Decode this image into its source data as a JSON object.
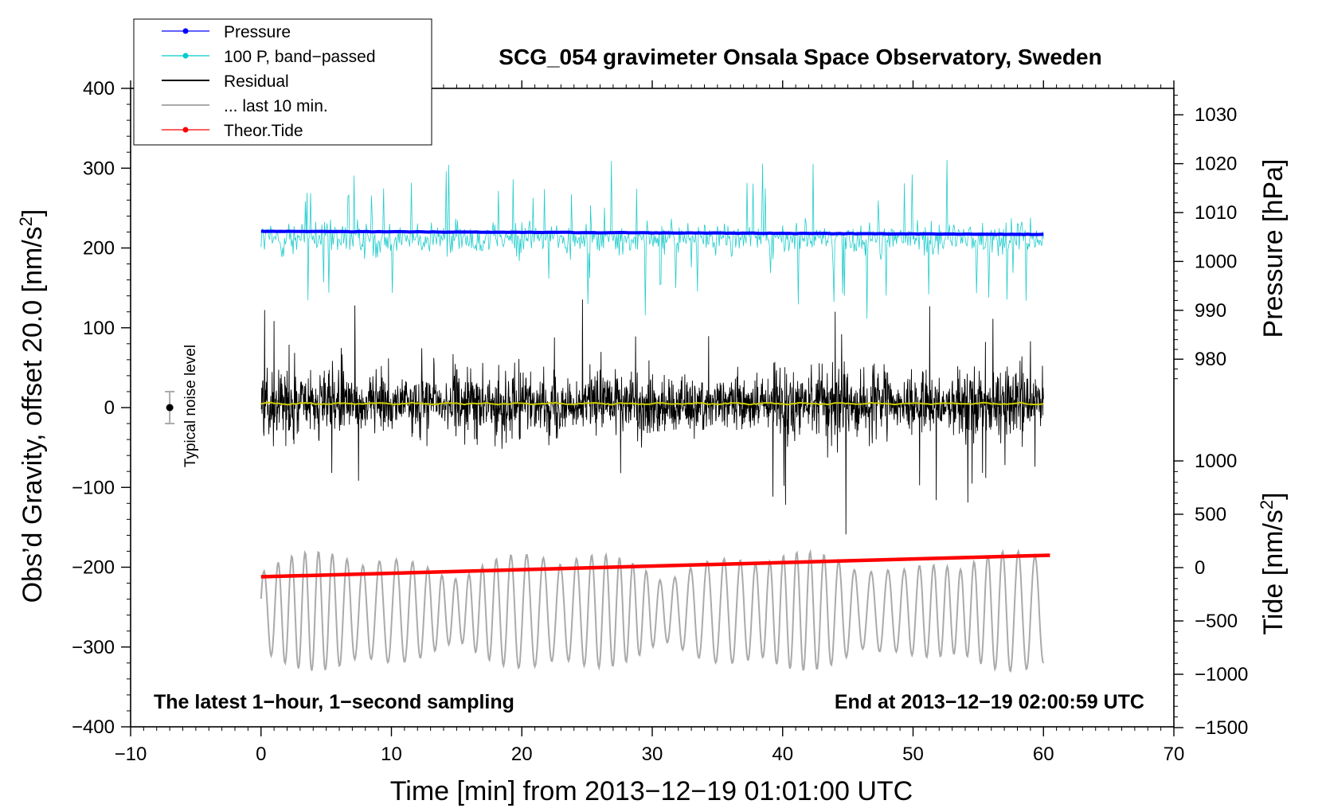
{
  "chart_data": {
    "type": "line",
    "title": "SCG_054 gravimeter Onsala Space Observatory, Sweden",
    "xlabel": "Time [min] from 2013−12−19 01:01:00 UTC",
    "ylabel_left": "Obs’d Gravity, offset 20.0 [nm/s²]",
    "ylabel_right_pressure": "Pressure [hPa]",
    "ylabel_right_tide": "Tide [nm/s²]",
    "xlim": [
      -10,
      70
    ],
    "ylim_left": [
      -400,
      400
    ],
    "x_ticks": [
      "−10",
      "0",
      "10",
      "20",
      "30",
      "40",
      "50",
      "60",
      "70"
    ],
    "y_ticks_left": [
      "400",
      "300",
      "200",
      "100",
      "0",
      "−100",
      "−200",
      "−300",
      "−400"
    ],
    "pressure_ticks": [
      "1030",
      "1020",
      "1010",
      "1000",
      "990",
      "980"
    ],
    "pressure_tick_values": [
      1030,
      1020,
      1010,
      1000,
      990,
      980
    ],
    "tide_ticks": [
      "1000",
      "500",
      "0",
      "−500",
      "−1000",
      "−1500"
    ],
    "tide_tick_values": [
      1000,
      500,
      0,
      -500,
      -1000,
      -1500
    ],
    "annotation_left": "The latest 1−hour, 1−second sampling",
    "annotation_right": "End at 2013−12−19 02:00:59 UTC",
    "noise_label": "Typical noise level",
    "noise_level": {
      "x": -7,
      "center": 0,
      "half_range": 20
    },
    "legend": [
      {
        "label": "Pressure",
        "color": "#0000ff",
        "style": "line-dot"
      },
      {
        "label": "100 P, band−passed",
        "color": "#00cccc",
        "style": "line-dot"
      },
      {
        "label": "Residual",
        "color": "#000000",
        "style": "line"
      },
      {
        "label": "... last 10 min.",
        "color": "#aaaaaa",
        "style": "line"
      },
      {
        "label": "Theor.Tide",
        "color": "#ff0000",
        "style": "line-dot"
      }
    ],
    "series": [
      {
        "name": "Pressure",
        "color": "#0000ff",
        "x_range": [
          0,
          60
        ],
        "y_start": 221,
        "y_end": 217
      },
      {
        "name": "100 P, band−passed",
        "color": "#22cccc",
        "x_range": [
          0,
          60
        ],
        "center": 212,
        "amplitude": 38
      },
      {
        "name": "Residual",
        "color": "#000000",
        "x_range": [
          0,
          60
        ],
        "center": 5,
        "amplitude": 55
      },
      {
        "name": "Residual (smoothed)",
        "color": "#cccc00",
        "x_range": [
          0,
          60
        ],
        "center": 5
      },
      {
        "name": "... last 10 min.",
        "color": "#aaaaaa",
        "x_range": [
          0,
          60
        ],
        "center": -255,
        "amplitude": 55
      },
      {
        "name": "Theor.Tide",
        "color": "#ff0000",
        "x_range": [
          0,
          60.5
        ],
        "y_start": -212,
        "y_end": -185
      }
    ]
  }
}
